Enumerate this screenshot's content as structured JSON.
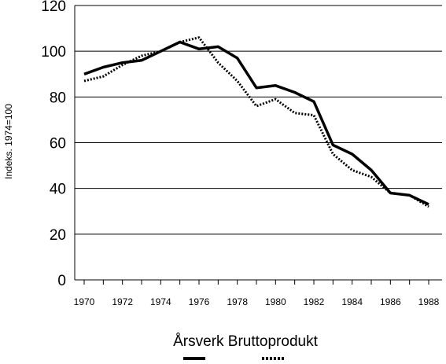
{
  "chart_data": {
    "type": "line",
    "ylabel": "Indeks. 1974=100",
    "legend_title": "Årsverk Bruttoprodukt",
    "ylim": [
      0,
      120
    ],
    "y_ticks": [
      "0",
      "20",
      "40",
      "60",
      "80",
      "100",
      "120"
    ],
    "x_ticks": [
      "1970",
      "1972",
      "1974",
      "1976",
      "1978",
      "1980",
      "1982",
      "1984",
      "1986",
      "1988"
    ],
    "x": [
      1970,
      1971,
      1972,
      1973,
      1974,
      1975,
      1976,
      1977,
      1978,
      1979,
      1980,
      1981,
      1982,
      1983,
      1984,
      1985,
      1986,
      1987,
      1988
    ],
    "series": [
      {
        "name": "Årsverk",
        "style": "solid",
        "color": "#000000",
        "values": [
          90,
          93,
          95,
          96,
          100,
          104,
          101,
          102,
          97,
          84,
          85,
          82,
          78,
          59,
          55,
          48,
          38,
          37,
          33
        ]
      },
      {
        "name": "Bruttoprodukt",
        "style": "dotted",
        "color": "#000000",
        "values": [
          87,
          89,
          94,
          98,
          100,
          104,
          106,
          95,
          87,
          76,
          79,
          73,
          72,
          55,
          48,
          45,
          38,
          37,
          32
        ]
      }
    ],
    "grid": "horizontal",
    "legend_placement": "bottom-center"
  }
}
